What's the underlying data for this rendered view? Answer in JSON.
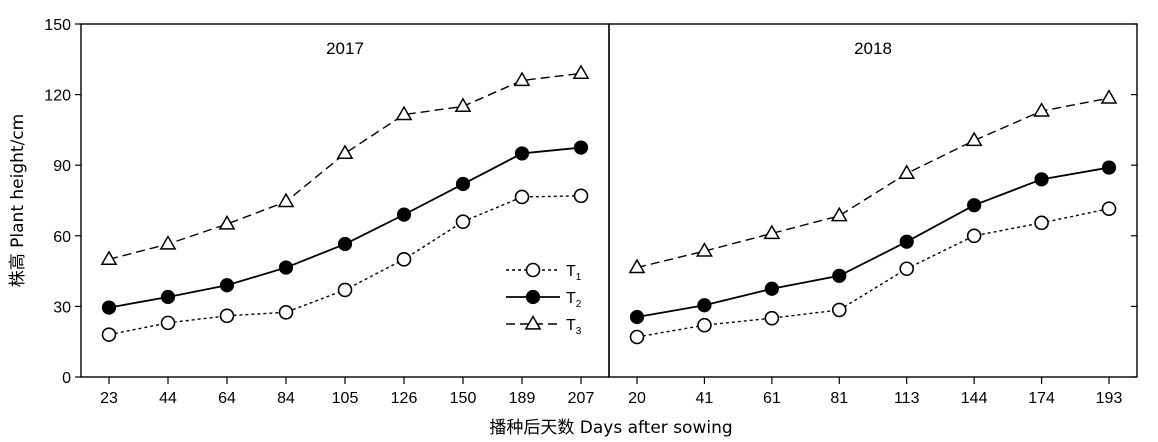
{
  "chart_data": {
    "type": "line",
    "ylabel": "株高 Plant height/cm",
    "xlabel": "播种后天数 Days after sowing",
    "ylim": [
      0,
      150
    ],
    "yticks": [
      0,
      30,
      60,
      90,
      120,
      150
    ],
    "grid": false,
    "legend_placement": "inside-right-of-left-panel",
    "legend": [
      {
        "key": "T1",
        "base": "T",
        "sub": "1",
        "marker": "open-circle",
        "line": "dotted"
      },
      {
        "key": "T2",
        "base": "T",
        "sub": "2",
        "marker": "filled-circle",
        "line": "solid"
      },
      {
        "key": "T3",
        "base": "T",
        "sub": "3",
        "marker": "open-triangle",
        "line": "dashed"
      }
    ],
    "panels": [
      {
        "title": "2017",
        "categories": [
          "23",
          "44",
          "64",
          "84",
          "105",
          "126",
          "150",
          "189",
          "207"
        ],
        "series": [
          {
            "key": "T1",
            "values": [
              18,
              23,
              26,
              27.5,
              37,
              50,
              66,
              76.5,
              77
            ]
          },
          {
            "key": "T2",
            "values": [
              29.5,
              34,
              39,
              46.5,
              56.5,
              69,
              82,
              95,
              97.5
            ]
          },
          {
            "key": "T3",
            "values": [
              50,
              56.5,
              65,
              74.5,
              95,
              111.5,
              115,
              126,
              129
            ]
          }
        ]
      },
      {
        "title": "2018",
        "categories": [
          "20",
          "41",
          "61",
          "81",
          "113",
          "144",
          "174",
          "193"
        ],
        "series": [
          {
            "key": "T1",
            "values": [
              17,
              22,
              25,
              28.5,
              46,
              60,
              65.5,
              71.5
            ]
          },
          {
            "key": "T2",
            "values": [
              25.5,
              30.5,
              37.5,
              43,
              57.5,
              73,
              84,
              89
            ]
          },
          {
            "key": "T3",
            "values": [
              46.5,
              53.5,
              61,
              68.5,
              86.5,
              100.5,
              113,
              118.5
            ]
          }
        ]
      }
    ]
  }
}
